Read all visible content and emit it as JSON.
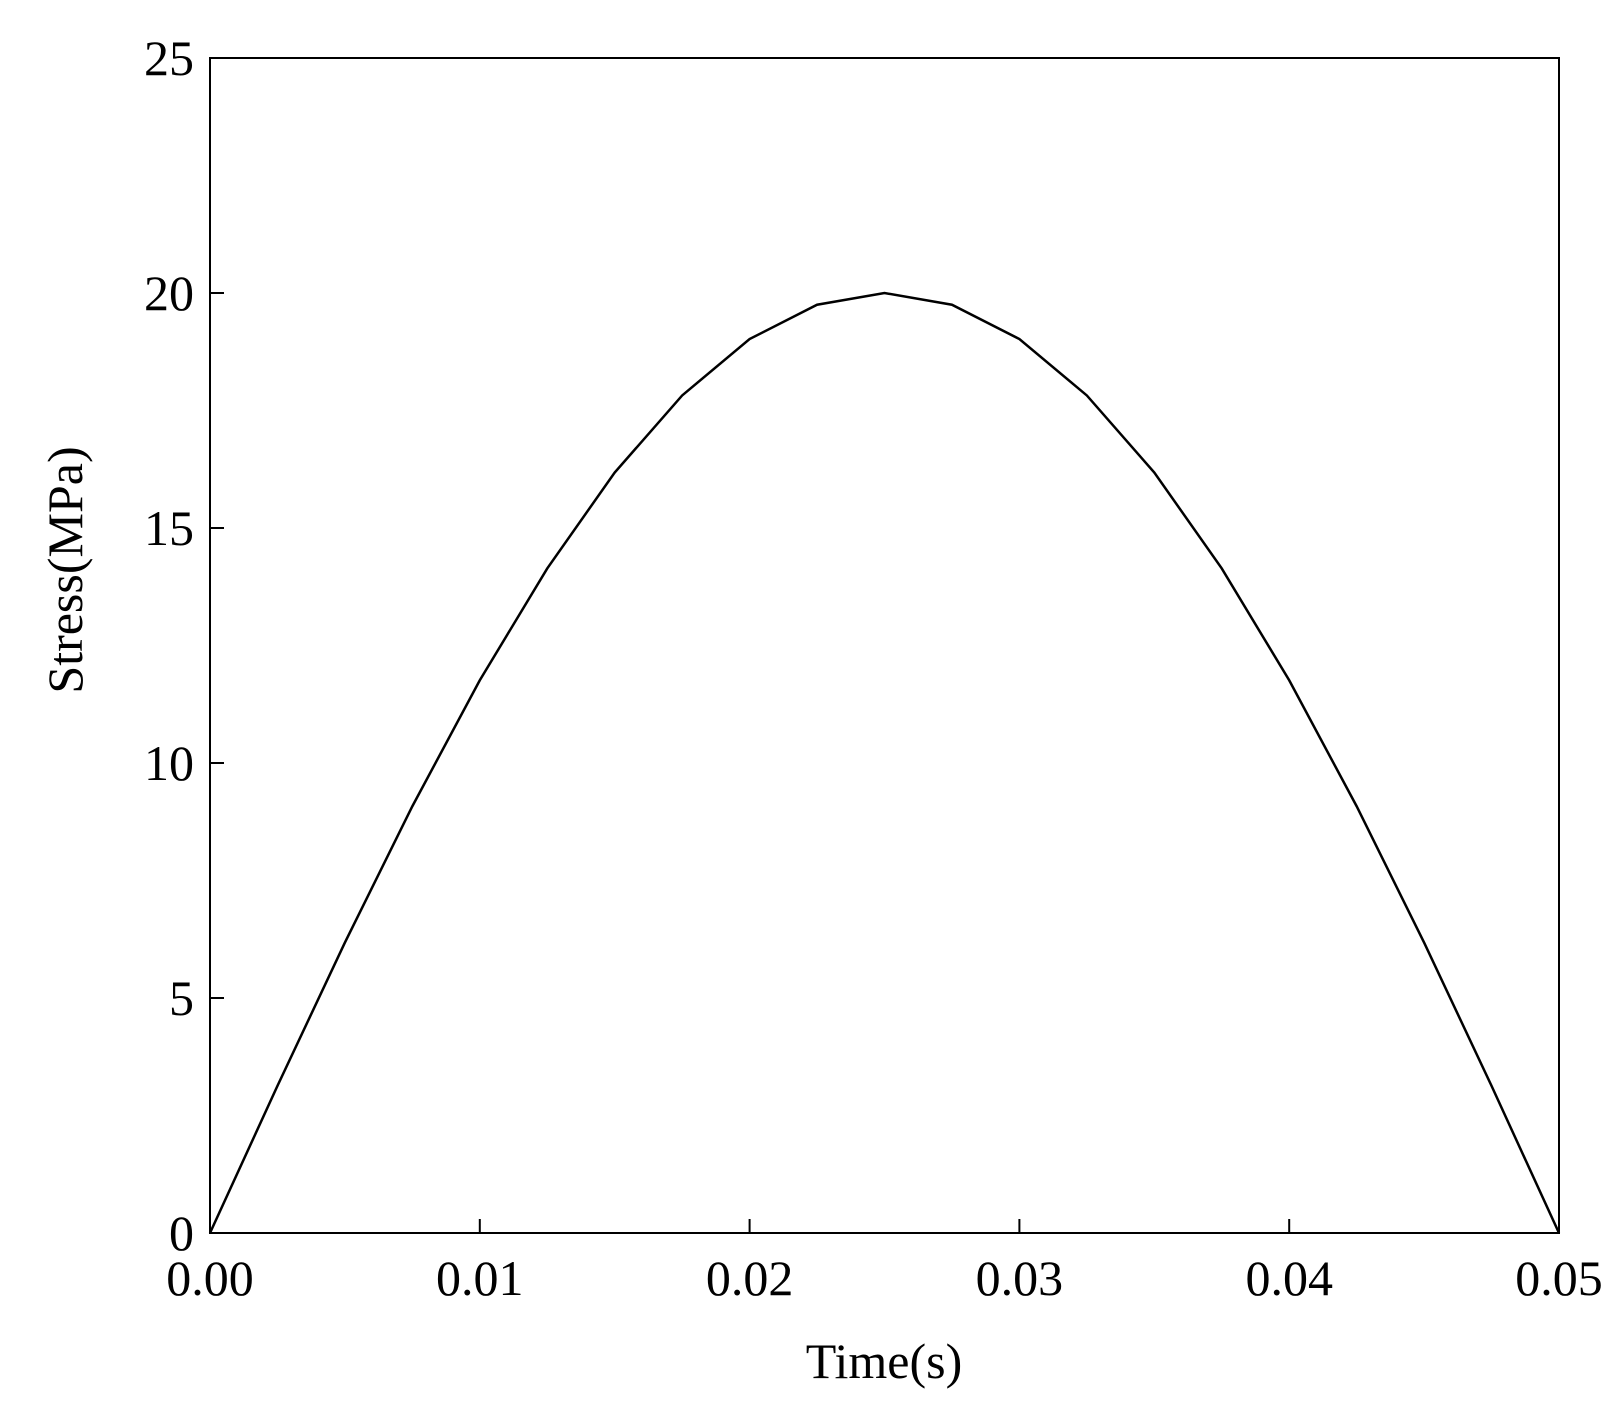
{
  "chart_data": {
    "type": "line",
    "title": "",
    "xlabel": "Time(s)",
    "ylabel": "Stress(MPa)",
    "xlim": [
      0,
      0.05
    ],
    "ylim": [
      0,
      25
    ],
    "x_ticks": [
      0,
      0.01,
      0.02,
      0.03,
      0.04,
      0.05
    ],
    "x_tick_labels": [
      "0.00",
      "0.01",
      "0.02",
      "0.03",
      "0.04",
      "0.05"
    ],
    "y_ticks": [
      0,
      5,
      10,
      15,
      20,
      25
    ],
    "y_tick_labels": [
      "0",
      "5",
      "10",
      "15",
      "20",
      "25"
    ],
    "grid": false,
    "legend": "none",
    "line_color": "#000000",
    "series": [
      {
        "x": [
          0,
          0.0025,
          0.005,
          0.0075,
          0.01,
          0.0125,
          0.015,
          0.0175,
          0.02,
          0.0225,
          0.025,
          0.0275,
          0.03,
          0.0325,
          0.035,
          0.0375,
          0.04,
          0.0425,
          0.045,
          0.0475,
          0.05
        ],
        "values": [
          0,
          3.13,
          6.18,
          9.08,
          11.76,
          14.14,
          16.18,
          17.82,
          19.02,
          19.75,
          20,
          19.75,
          19.02,
          17.82,
          16.18,
          14.14,
          11.76,
          9.08,
          6.18,
          3.13,
          0
        ]
      }
    ]
  }
}
